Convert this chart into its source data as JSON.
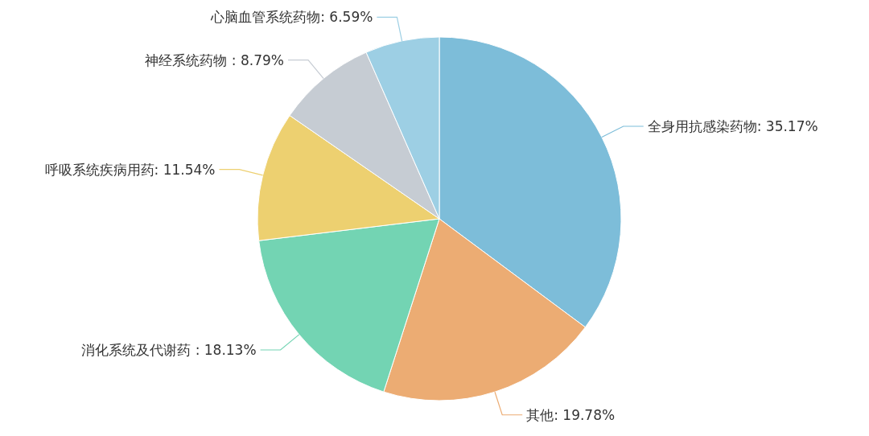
{
  "chart_data": {
    "type": "pie",
    "categories": [
      "全身用抗感染药物",
      "其他",
      "消化系统及代谢药 ",
      "呼吸系统疾病用药",
      "神经系统药物 ",
      "心脑血管系统药物"
    ],
    "values": [
      35.17,
      19.78,
      18.13,
      11.54,
      8.79,
      6.59
    ],
    "value_labels": [
      "35.17%",
      "19.78%",
      "18.13%",
      "11.54%",
      "8.79%",
      "6.59%"
    ],
    "colors": [
      "#7dbdd9",
      "#ecac73",
      "#73d4b3",
      "#edd070",
      "#c6ccd3",
      "#9dcfe4"
    ]
  }
}
